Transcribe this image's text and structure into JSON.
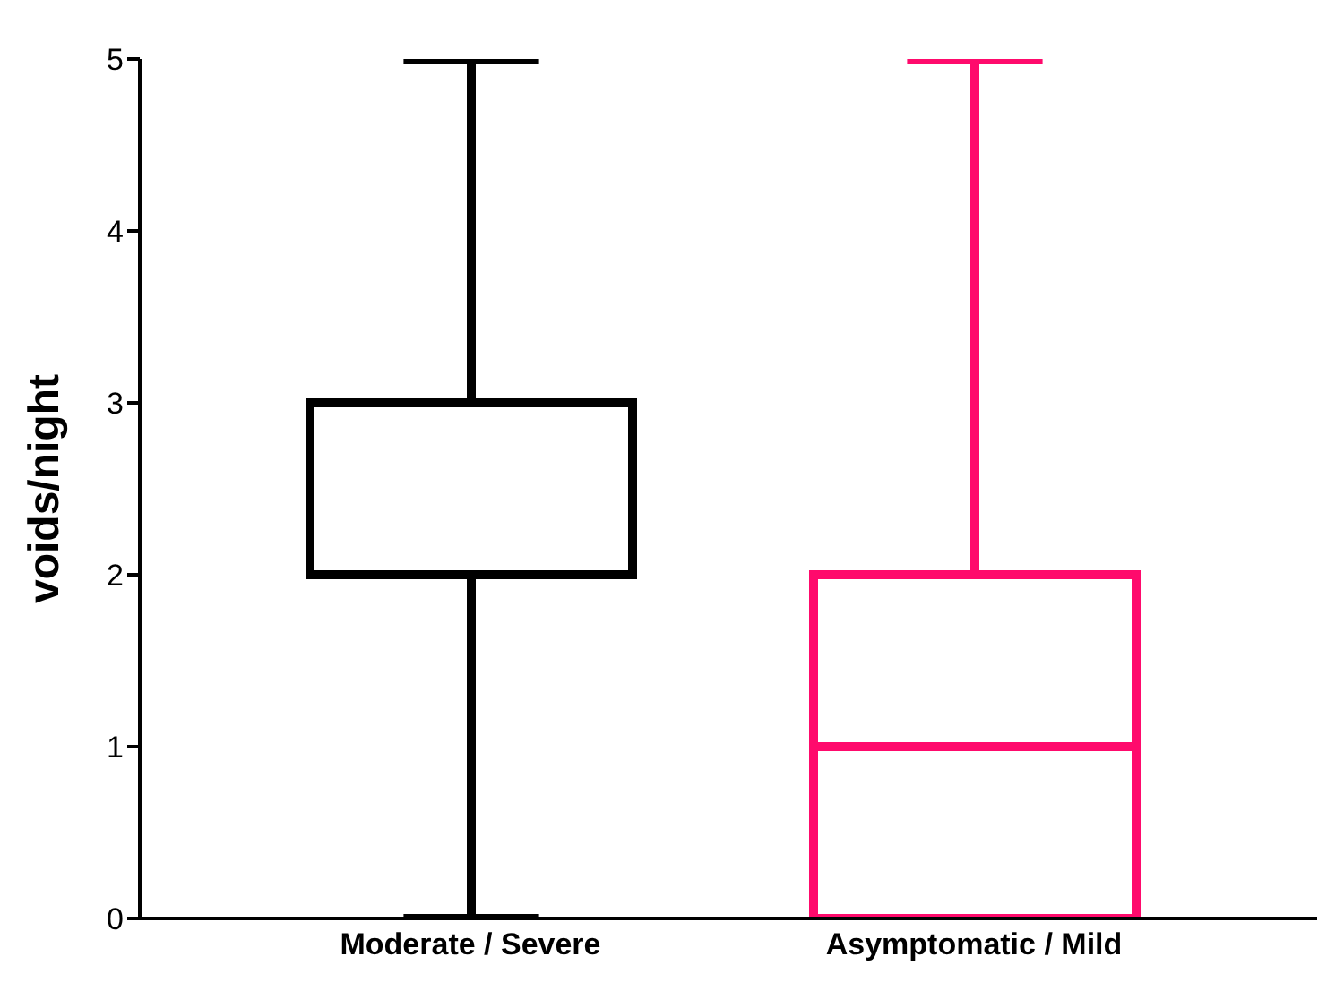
{
  "chart_data": {
    "type": "box",
    "ylabel": "voids/night",
    "categories": [
      "Moderate / Severe",
      "Asymptomatic / Mild"
    ],
    "boxes": [
      {
        "low": 0,
        "q1": 2,
        "median": 2,
        "q3": 3,
        "high": 5
      },
      {
        "low": 0,
        "q1": 0,
        "median": 1,
        "q3": 2,
        "high": 5
      }
    ],
    "colors": [
      "#000000",
      "#ff0a6c"
    ],
    "ylim": [
      0,
      5
    ],
    "yticks": [
      0,
      1,
      2,
      3,
      4,
      5
    ]
  }
}
